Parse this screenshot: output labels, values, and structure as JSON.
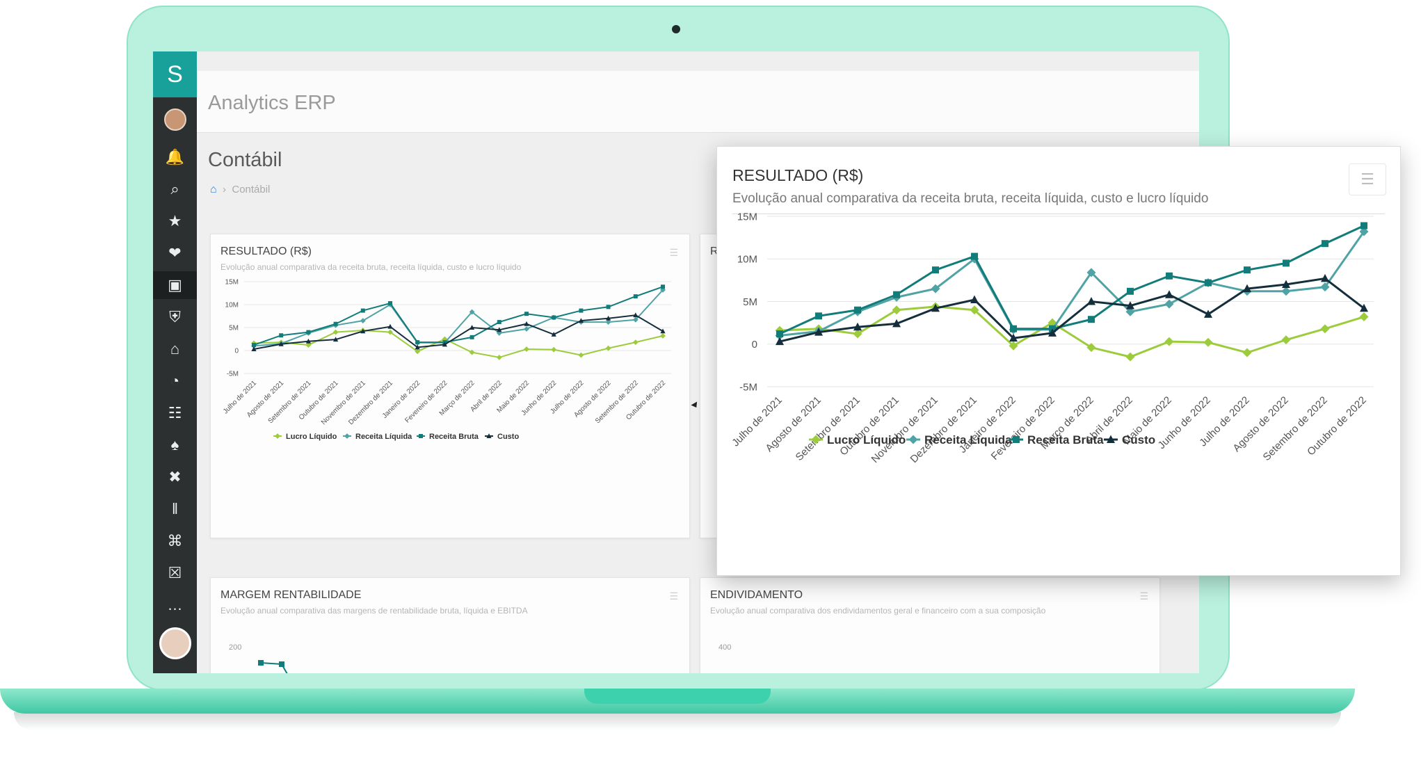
{
  "app": {
    "title": "Analytics ERP"
  },
  "page": {
    "title": "Contábil",
    "breadcrumb": "Contábil"
  },
  "sidebar": {
    "logo": "S",
    "icons": [
      "bell-icon",
      "search-icon",
      "star-icon",
      "handshake-icon",
      "briefcase-icon",
      "shield-icon",
      "graduation-cap-icon",
      "gauge-icon",
      "org-chart-icon",
      "trophy-icon",
      "tools-icon",
      "pause-icon",
      "cart-icon",
      "lock-icon",
      "more-icon"
    ]
  },
  "cards": {
    "resultado": {
      "title": "RESULTADO (R$)",
      "subtitle": "Evolução anual comparativa da receita bruta, receita líquida, custo e lucro líquido"
    },
    "margem": {
      "title": "MARGEM RENTABILIDADE",
      "subtitle": "Evolução anual comparativa das margens de rentabilidade bruta, líquida e EBITDA",
      "ytick": "200"
    },
    "endividamento": {
      "title": "ENDIVIDAMENTO",
      "subtitle": "Evolução anual comparativa dos endividamentos geral e financeiro com a sua composição",
      "ytick": "400"
    },
    "partial_letter": "R"
  },
  "popup": {
    "title": "RESULTADO (R$)",
    "subtitle": "Evolução anual comparativa da receita bruta, receita líquida, custo e lucro líquido"
  },
  "chart_data": {
    "type": "line",
    "title": "RESULTADO (R$)",
    "subtitle": "Evolução anual comparativa da receita bruta, receita líquida, custo e lucro líquido",
    "categories": [
      "Julho de 2021",
      "Agosto de 2021",
      "Setembro de 2021",
      "Outubro de 2021",
      "Novembro de 2021",
      "Dezembro de 2021",
      "Janeiro de 2022",
      "Fevereiro de 2022",
      "Março de 2022",
      "Abril de 2022",
      "Maio de 2022",
      "Junho de 2022",
      "Julho de 2022",
      "Agosto de 2022",
      "Setembro de 2022",
      "Outubro de 2022"
    ],
    "yticks": [
      15000000,
      10000000,
      5000000,
      0,
      -5000000
    ],
    "ytick_labels": [
      "15M",
      "10M",
      "5M",
      "0",
      "-5M"
    ],
    "ylim": [
      -5000000,
      15000000
    ],
    "grid": true,
    "legend_position": "bottom",
    "series": [
      {
        "name": "Lucro Líquido",
        "color": "#9ccc3c",
        "marker": "diamond",
        "values": [
          1600000,
          1800000,
          1200000,
          4000000,
          4400000,
          4000000,
          -200000,
          2500000,
          -400000,
          -1500000,
          300000,
          200000,
          -1000000,
          500000,
          1800000,
          3200000
        ]
      },
      {
        "name": "Receita Líquida",
        "color": "#4fa3a5",
        "marker": "diamond",
        "values": [
          1000000,
          1500000,
          3800000,
          5500000,
          6500000,
          10000000,
          1700000,
          1700000,
          8400000,
          3800000,
          4700000,
          7200000,
          6200000,
          6200000,
          6700000,
          13200000
        ]
      },
      {
        "name": "Receita Bruta",
        "color": "#117c79",
        "marker": "square",
        "values": [
          1200000,
          3300000,
          4000000,
          5800000,
          8700000,
          10300000,
          1800000,
          1800000,
          2900000,
          6200000,
          8000000,
          7200000,
          8700000,
          9500000,
          11800000,
          13900000
        ]
      },
      {
        "name": "Custo",
        "color": "#152e3c",
        "marker": "triangle",
        "values": [
          300000,
          1400000,
          2000000,
          2400000,
          4200000,
          5200000,
          700000,
          1300000,
          5000000,
          4500000,
          5800000,
          3500000,
          6500000,
          7000000,
          7700000,
          4200000
        ]
      }
    ]
  }
}
